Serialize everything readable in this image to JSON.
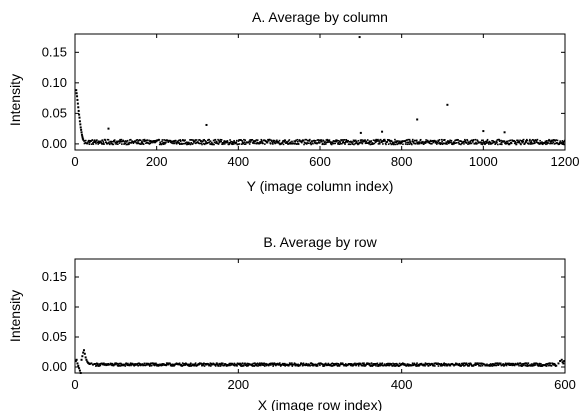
{
  "chart_data": [
    {
      "type": "scatter",
      "title": "A. Average by column",
      "xlabel": "Y (image column index)",
      "ylabel": "Intensity",
      "xlim": [
        0,
        1200
      ],
      "ylim": [
        -0.01,
        0.18
      ],
      "xticks": [
        "0",
        "200",
        "400",
        "600",
        "800",
        "1000",
        "1200"
      ],
      "yticks": [
        "0.00",
        "0.05",
        "0.10",
        "0.15"
      ],
      "grid": false,
      "series": [
        {
          "color": "#000000",
          "note_baseline": {
            "level": 0.003,
            "jitter": 0.004,
            "from": 22,
            "to": 1200
          },
          "points": [
            [
              3,
              0.088
            ],
            [
              4,
              0.083
            ],
            [
              5,
              0.078
            ],
            [
              6,
              0.072
            ],
            [
              7,
              0.066
            ],
            [
              8,
              0.06
            ],
            [
              9,
              0.054
            ],
            [
              10,
              0.048
            ],
            [
              11,
              0.043
            ],
            [
              12,
              0.037
            ],
            [
              13,
              0.032
            ],
            [
              14,
              0.027
            ],
            [
              15,
              0.023
            ],
            [
              16,
              0.019
            ],
            [
              17,
              0.015
            ],
            [
              18,
              0.012
            ],
            [
              19,
              0.009
            ],
            [
              20,
              0.007
            ],
            [
              82,
              0.025
            ],
            [
              322,
              0.031
            ],
            [
              700,
              0.018
            ],
            [
              752,
              0.02
            ],
            [
              838,
              0.04
            ],
            [
              912,
              0.064
            ],
            [
              1000,
              0.021
            ],
            [
              1052,
              0.019
            ],
            [
              697,
              0.175
            ]
          ]
        }
      ]
    },
    {
      "type": "scatter",
      "title": "B. Average by row",
      "xlabel": "X (image row index)",
      "ylabel": "Intensity",
      "xlim": [
        0,
        600
      ],
      "ylim": [
        -0.01,
        0.18
      ],
      "xticks": [
        "0",
        "200",
        "400",
        "600"
      ],
      "yticks": [
        "0.00",
        "0.05",
        "0.10",
        "0.15"
      ],
      "grid": false,
      "series": [
        {
          "color": "#000000",
          "note_baseline": {
            "level": 0.004,
            "jitter": 0.0025,
            "from": 25,
            "to": 590
          },
          "points": [
            [
              1,
              0.01
            ],
            [
              2,
              0.012
            ],
            [
              3,
              0.006
            ],
            [
              4,
              0.002
            ],
            [
              5,
              -0.002
            ],
            [
              6,
              -0.006
            ],
            [
              7,
              -0.01
            ],
            [
              8,
              0.012
            ],
            [
              9,
              0.018
            ],
            [
              10,
              0.024
            ],
            [
              11,
              0.028
            ],
            [
              12,
              0.022
            ],
            [
              13,
              0.016
            ],
            [
              14,
              0.012
            ],
            [
              15,
              0.009
            ],
            [
              16,
              0.007
            ],
            [
              17,
              0.006
            ],
            [
              18,
              0.005
            ],
            [
              20,
              0.006
            ],
            [
              22,
              0.004
            ],
            [
              24,
              0.005
            ],
            [
              592,
              0.006
            ],
            [
              594,
              0.01
            ],
            [
              596,
              0.012
            ],
            [
              597,
              0.008
            ],
            [
              598,
              0.006
            ],
            [
              599,
              0.01
            ]
          ]
        }
      ]
    }
  ]
}
